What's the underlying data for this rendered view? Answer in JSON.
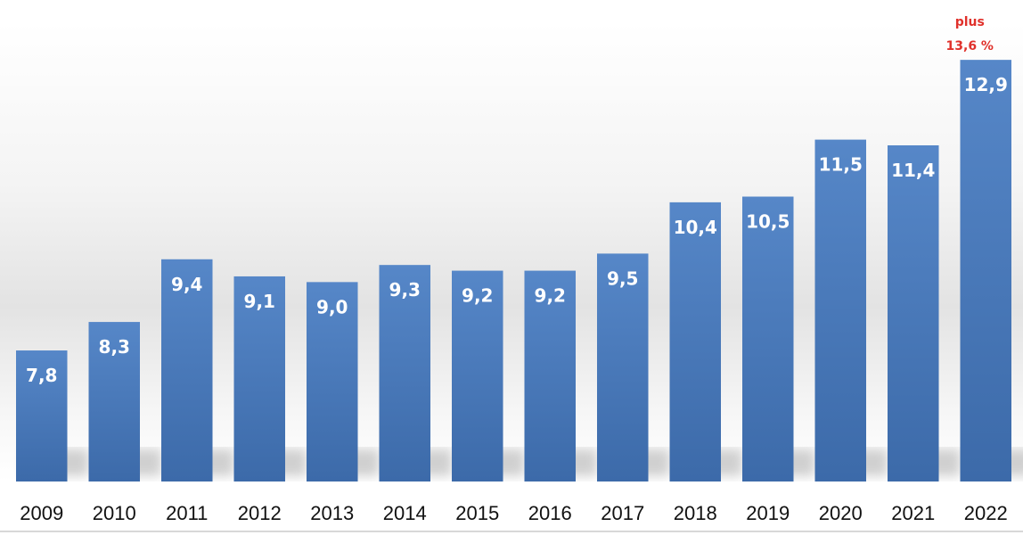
{
  "chart_data": {
    "type": "bar",
    "categories": [
      "2009",
      "2010",
      "2011",
      "2012",
      "2013",
      "2014",
      "2015",
      "2016",
      "2017",
      "2018",
      "2019",
      "2020",
      "2021",
      "2022"
    ],
    "values": [
      7.8,
      8.3,
      9.4,
      9.1,
      9.0,
      9.3,
      9.2,
      9.2,
      9.5,
      10.4,
      10.5,
      11.5,
      11.4,
      12.9
    ],
    "data_labels": [
      "7,8",
      "8,3",
      "9,4",
      "9,1",
      "9,0",
      "9,3",
      "9,2",
      "9,2",
      "9,5",
      "10,4",
      "10,5",
      "11,5",
      "11,4",
      "12,9"
    ],
    "annotation": {
      "category": "2022",
      "line1": "plus",
      "line2": "13,6 %"
    },
    "ylim": [
      5.5,
      13.0
    ],
    "grid": false,
    "legend": "none"
  },
  "colors": {
    "bar_top": "#5687c8",
    "bar_bottom": "#3c6aa9",
    "label_text": "#ffffff",
    "annotation_text": "#e0312b",
    "tick_text": "#111111",
    "axis_line": "#b0b0b0"
  }
}
